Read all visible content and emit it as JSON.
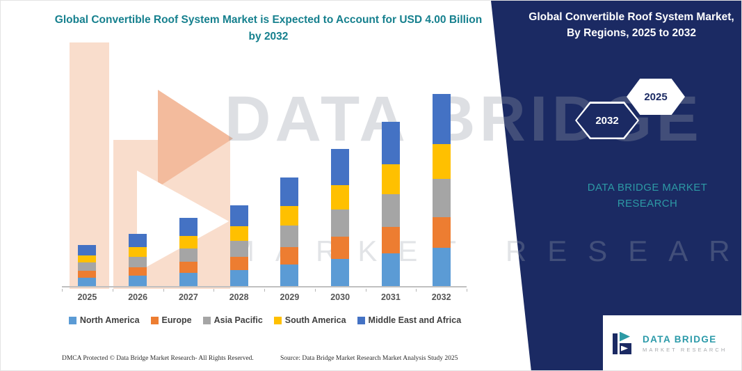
{
  "header": {
    "title": "Global Convertible Roof System Market is Expected to Account for USD 4.00 Billion by 2032"
  },
  "side_panel": {
    "title": "Global Convertible Roof System Market, By Regions, 2025 to 2032",
    "hexagon_back_label": "2032",
    "hexagon_front_label": "2025",
    "brand_text": "DATA BRIDGE MARKET RESEARCH",
    "bg_color": "#1b2a63",
    "accent_color": "#2d9aa5"
  },
  "watermark": {
    "line1": "DATA BRIDGE",
    "line2": "MARKET RESEARCH"
  },
  "chart_data": {
    "type": "bar",
    "stacked": true,
    "title": "Global Convertible Roof System Market is Expected to Account for USD 4.00 Billion by 2032",
    "xlabel": "",
    "ylabel": "",
    "units": "USD Billion",
    "axis_labels_visible": false,
    "grid": false,
    "legend_position": "bottom",
    "categories": [
      "2025",
      "2026",
      "2027",
      "2028",
      "2029",
      "2030",
      "2031",
      "2032"
    ],
    "series": [
      {
        "name": "North America",
        "color": "#5b9bd5",
        "values": [
          0.17,
          0.22,
          0.28,
          0.34,
          0.45,
          0.57,
          0.68,
          0.8
        ]
      },
      {
        "name": "Europe",
        "color": "#ed7d31",
        "values": [
          0.14,
          0.18,
          0.23,
          0.27,
          0.36,
          0.46,
          0.55,
          0.64
        ]
      },
      {
        "name": "Asia Pacific",
        "color": "#a5a5a5",
        "values": [
          0.17,
          0.22,
          0.28,
          0.34,
          0.45,
          0.57,
          0.68,
          0.8
        ]
      },
      {
        "name": "South America",
        "color": "#ffc000",
        "values": [
          0.15,
          0.2,
          0.26,
          0.31,
          0.41,
          0.51,
          0.62,
          0.72
        ]
      },
      {
        "name": "Middle East and Africa",
        "color": "#4472c4",
        "values": [
          0.22,
          0.28,
          0.37,
          0.44,
          0.6,
          0.75,
          0.89,
          1.04
        ]
      }
    ],
    "totals": [
      0.85,
      1.1,
      1.42,
      1.7,
      2.27,
      2.86,
      3.42,
      4.0
    ]
  },
  "footer": {
    "left": "DMCA Protected © Data Bridge Market Research-  All Rights Reserved.",
    "right": "Source: Data Bridge Market Research  Market Analysis Study 2025"
  },
  "logo": {
    "name": "DATA BRIDGE",
    "sub": "MARKET RESEARCH"
  }
}
